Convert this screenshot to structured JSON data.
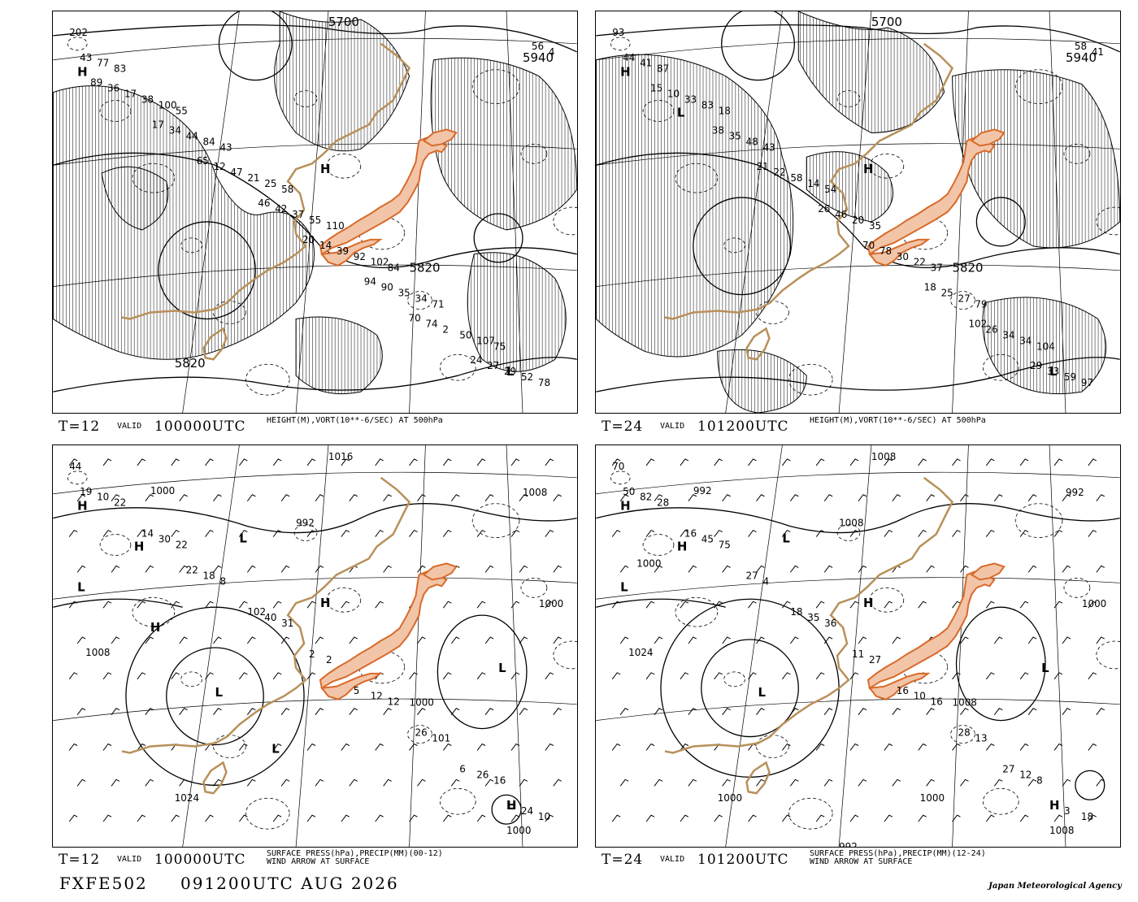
{
  "panels": [
    {
      "id": "tl",
      "t_label": "T=12",
      "valid_label": "VALID",
      "valid_time": "100000UTC",
      "field": "HEIGHT(M),VORT(10**-6/SEC) AT 500hPa",
      "field2": "",
      "contour_labels": [
        "5700",
        "5940",
        "5820",
        "5820"
      ],
      "centers": [
        "H",
        "H",
        "L"
      ],
      "values": [
        "202",
        "55",
        "58",
        "84",
        "75",
        "83",
        "43",
        "110",
        "71",
        "78",
        "100",
        "25",
        "102",
        "107",
        "77",
        "84",
        "55",
        "34",
        "52",
        "38",
        "21",
        "92",
        "50",
        "43",
        "44",
        "37",
        "35",
        "29",
        "17",
        "47",
        "39",
        "2",
        "4",
        "34",
        "42",
        "90",
        "27",
        "36",
        "12",
        "14",
        "74",
        "56",
        "17",
        "46",
        "94",
        "24",
        "89",
        "65",
        "20",
        "70"
      ]
    },
    {
      "id": "tr",
      "t_label": "T=24",
      "valid_label": "VALID",
      "valid_time": "101200UTC",
      "field": "HEIGHT(M),VORT(10**-6/SEC) AT 500hPa",
      "field2": "",
      "contour_labels": [
        "5700",
        "5940",
        "5820"
      ],
      "centers": [
        "H",
        "H",
        "L",
        "L"
      ],
      "values": [
        "93",
        "18",
        "54",
        "37",
        "104",
        "87",
        "43",
        "35",
        "79",
        "97",
        "83",
        "14",
        "22",
        "34",
        "41",
        "48",
        "20",
        "27",
        "59",
        "33",
        "58",
        "30",
        "34",
        "44",
        "35",
        "46",
        "25",
        "33",
        "10",
        "22",
        "78",
        "26",
        "41",
        "38",
        "26",
        "18",
        "29",
        "15",
        "21",
        "70",
        "102",
        "58"
      ]
    },
    {
      "id": "bl",
      "t_label": "T=12",
      "valid_label": "VALID",
      "valid_time": "100000UTC",
      "field": "SURFACE PRESS(hPa),PRECIP(MM)(00-12)",
      "field2": "WIND ARROW AT SURFACE",
      "contour_labels": [
        "1016",
        "1008",
        "1000",
        "1024",
        "1008",
        "1000",
        "992",
        "1000",
        "1000"
      ],
      "centers": [
        "H",
        "H",
        "H",
        "H",
        "L",
        "L",
        "L",
        "L",
        "L",
        "H",
        "L"
      ],
      "values": [
        "44",
        "22",
        "31",
        "12",
        "16",
        "22",
        "8",
        "2",
        "101",
        "10",
        "30",
        "40",
        "12",
        "26",
        "10",
        "18",
        "2",
        "26",
        "24",
        "14",
        "102",
        "5",
        "6",
        "19",
        "22"
      ]
    },
    {
      "id": "br",
      "t_label": "T=24",
      "valid_label": "VALID",
      "valid_time": "101200UTC",
      "field": "SURFACE PRESS(hPa),PRECIP(MM)(12-24)",
      "field2": "WIND ARROW AT SURFACE",
      "contour_labels": [
        "1008",
        "992",
        "1008",
        "1000",
        "1024",
        "1000",
        "1008",
        "992",
        "1008",
        "992",
        "1000",
        "1000"
      ],
      "centers": [
        "H",
        "H",
        "H",
        "H",
        "L",
        "L",
        "L",
        "L"
      ],
      "values": [
        "70",
        "75",
        "36",
        "16",
        "8",
        "28",
        "4",
        "27",
        "13",
        "18",
        "45",
        "35",
        "10",
        "12",
        "82",
        "27",
        "11",
        "28",
        "3",
        "16",
        "18",
        "16",
        "27",
        "50"
      ]
    }
  ],
  "footer": {
    "id": "FXFE502",
    "initial_time": "091200UTC AUG 2026",
    "agency": "Japan Meteorological Agency"
  },
  "colors": {
    "japan_fill": "#f2c5a8",
    "japan_edge": "#d86a2a",
    "coast": "#b8905a",
    "hatch": "#000000"
  }
}
